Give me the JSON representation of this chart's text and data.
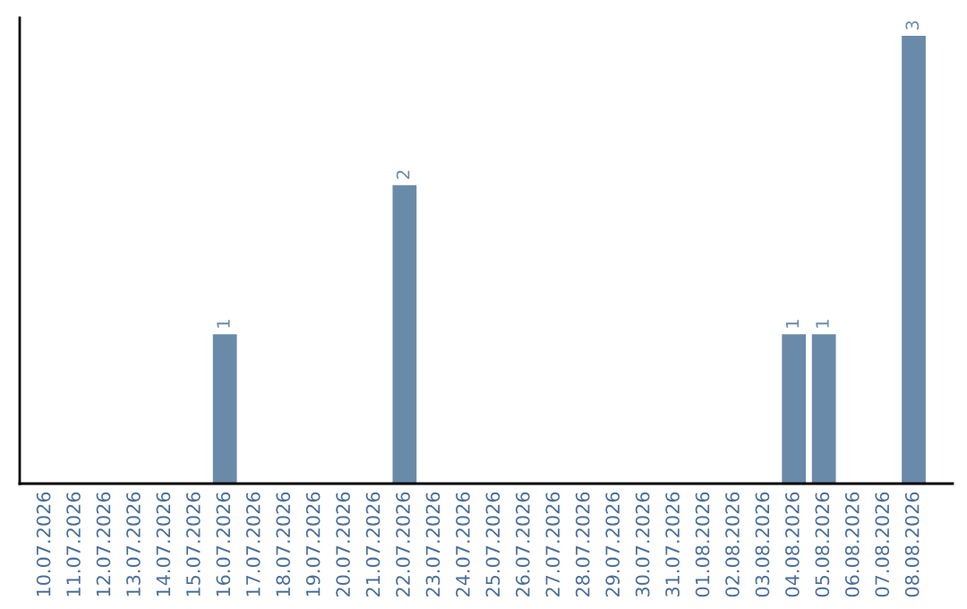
{
  "chart_data": {
    "type": "bar",
    "categories": [
      "10.07.2026",
      "11.07.2026",
      "12.07.2026",
      "13.07.2026",
      "14.07.2026",
      "15.07.2026",
      "16.07.2026",
      "17.07.2026",
      "18.07.2026",
      "19.07.2026",
      "20.07.2026",
      "21.07.2026",
      "22.07.2026",
      "23.07.2026",
      "24.07.2026",
      "25.07.2026",
      "26.07.2026",
      "27.07.2026",
      "28.07.2026",
      "29.07.2026",
      "30.07.2026",
      "31.07.2026",
      "01.08.2026",
      "02.08.2026",
      "03.08.2026",
      "04.08.2026",
      "05.08.2026",
      "06.08.2026",
      "07.08.2026",
      "08.08.2026"
    ],
    "values": [
      0,
      0,
      0,
      0,
      0,
      0,
      1,
      0,
      0,
      0,
      0,
      0,
      2,
      0,
      0,
      0,
      0,
      0,
      0,
      0,
      0,
      0,
      0,
      0,
      0,
      1,
      1,
      0,
      0,
      3
    ],
    "value_labels": [
      null,
      null,
      null,
      null,
      null,
      null,
      "1",
      null,
      null,
      null,
      null,
      null,
      "2",
      null,
      null,
      null,
      null,
      null,
      null,
      null,
      null,
      null,
      null,
      null,
      null,
      "1",
      "1",
      null,
      null,
      "3"
    ],
    "color": "#6a8aaa",
    "ylim": [
      0,
      3.12
    ],
    "tick_labels": "x",
    "grid": false,
    "legend": false
  }
}
